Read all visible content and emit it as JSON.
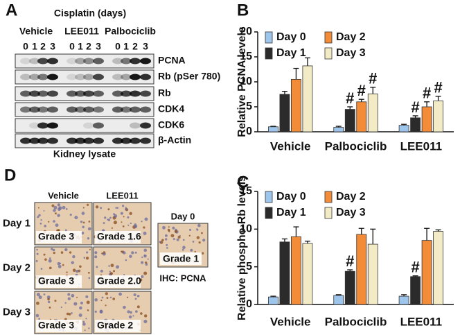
{
  "panel_a": {
    "label": "A",
    "title": "Cisplatin (days)",
    "groups": [
      {
        "name": "Vehicle",
        "lanes": [
          "0",
          "1",
          "2",
          "3"
        ]
      },
      {
        "name": "LEE011",
        "lanes": [
          "0",
          "1",
          "2",
          "3"
        ]
      },
      {
        "name": "Palbociclib",
        "lanes": [
          "0",
          "1",
          "2",
          "3"
        ]
      }
    ],
    "proteins": [
      "PCNA",
      "Rb (pSer 780)",
      "Rb",
      "CDK4",
      "CDK6",
      "β-Actin"
    ],
    "caption": "Kidney lysate"
  },
  "chart_data": [
    {
      "type": "bar",
      "label": "B",
      "ylabel": "Relative PCNA levels",
      "categories": [
        "Vehicle",
        "Palbociclib",
        "LEE011"
      ],
      "ylim": [
        0,
        20
      ],
      "yticks": [
        0,
        5,
        10,
        15,
        20
      ],
      "series": [
        {
          "name": "Day 0",
          "color": "#9ec5ec",
          "values": [
            1.0,
            0.9,
            1.3
          ],
          "errors": [
            0.1,
            0.2,
            0.2
          ],
          "annotations": [
            null,
            null,
            null
          ]
        },
        {
          "name": "Day 1",
          "color": "#2b2b2b",
          "values": [
            7.5,
            4.5,
            2.8
          ],
          "errors": [
            0.6,
            0.5,
            0.4
          ],
          "annotations": [
            null,
            "#",
            "#"
          ]
        },
        {
          "name": "Day 2",
          "color": "#f28c38",
          "values": [
            10.5,
            6.0,
            5.0
          ],
          "errors": [
            2.2,
            0.5,
            1.0
          ],
          "annotations": [
            null,
            "#",
            "#"
          ]
        },
        {
          "name": "Day 3",
          "color": "#f3ebc6",
          "values": [
            13.2,
            7.6,
            6.2
          ],
          "errors": [
            1.6,
            1.3,
            0.9
          ],
          "annotations": [
            null,
            "#",
            "#"
          ]
        }
      ]
    },
    {
      "type": "bar",
      "label": "C",
      "ylabel": "Relative phospho-Rb levels",
      "categories": [
        "Vehicle",
        "Palbociclib",
        "LEE011"
      ],
      "ylim": [
        0,
        15
      ],
      "yticks": [
        0,
        5,
        10,
        15
      ],
      "series": [
        {
          "name": "Day 0",
          "color": "#9ec5ec",
          "values": [
            1.0,
            1.2,
            1.1
          ],
          "errors": [
            0.1,
            0.1,
            0.2
          ],
          "annotations": [
            null,
            null,
            null
          ]
        },
        {
          "name": "Day 1",
          "color": "#2b2b2b",
          "values": [
            8.3,
            4.4,
            3.7
          ],
          "errors": [
            0.4,
            0.2,
            0.1
          ],
          "annotations": [
            null,
            "#",
            "#"
          ]
        },
        {
          "name": "Day 2",
          "color": "#f28c38",
          "values": [
            9.0,
            9.3,
            8.5
          ],
          "errors": [
            1.3,
            0.8,
            1.6
          ],
          "annotations": [
            null,
            null,
            null
          ]
        },
        {
          "name": "Day 3",
          "color": "#f3ebc6",
          "values": [
            8.1,
            8.0,
            9.7
          ],
          "errors": [
            0.3,
            2.0,
            0.2
          ],
          "annotations": [
            null,
            null,
            null
          ]
        }
      ]
    }
  ],
  "panel_d": {
    "label": "D",
    "columns": [
      "Vehicle",
      "LEE011"
    ],
    "rows": [
      {
        "day": "Day 1",
        "grades": [
          "Grade 3",
          "Grade 1.6"
        ]
      },
      {
        "day": "Day 2",
        "grades": [
          "Grade 3",
          "Grade 2.0"
        ]
      },
      {
        "day": "Day 3",
        "grades": [
          "Grade 3",
          "Grade 2"
        ]
      }
    ],
    "control": {
      "day": "Day 0",
      "grade": "Grade 1"
    },
    "caption": "IHC: PCNA"
  }
}
